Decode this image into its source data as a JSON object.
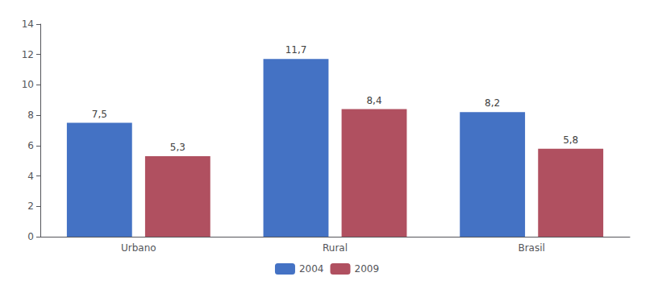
{
  "chart_data": {
    "type": "bar",
    "categories": [
      "Urbano",
      "Rural",
      "Brasil"
    ],
    "series": [
      {
        "name": "2004",
        "color": "#4472C4",
        "values": [
          7.5,
          11.7,
          8.2
        ],
        "value_labels": [
          "7,5",
          "11,7",
          "8,2"
        ]
      },
      {
        "name": "2009",
        "color": "#B05060",
        "values": [
          5.3,
          8.4,
          5.8
        ],
        "value_labels": [
          "5,3",
          "8,4",
          "5,8"
        ]
      }
    ],
    "ylim": [
      0,
      14
    ],
    "yticks": [
      0,
      2,
      4,
      6,
      8,
      10,
      12,
      14
    ],
    "grid": false,
    "legend": "bottom",
    "data_labels": true
  }
}
